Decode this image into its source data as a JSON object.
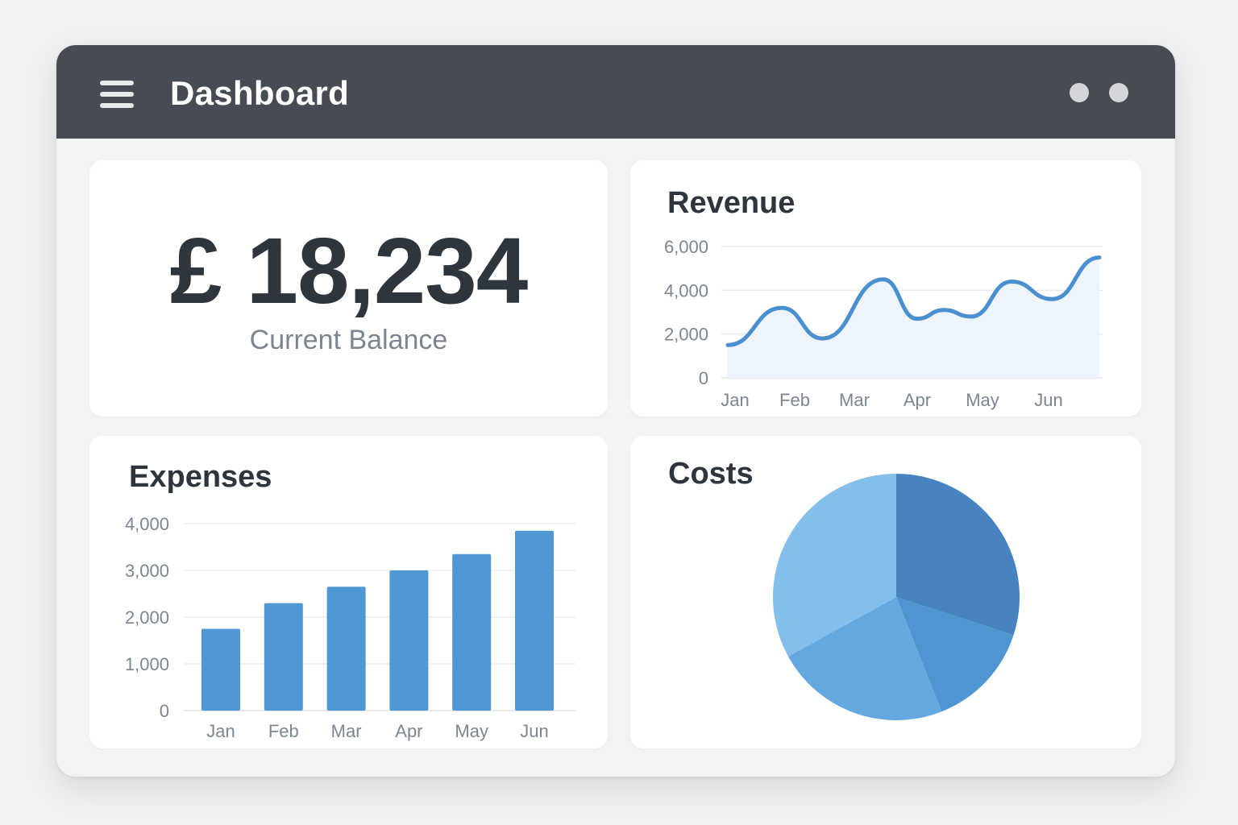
{
  "header": {
    "title": "Dashboard",
    "menu_icon": "hamburger-menu-icon",
    "window_controls": [
      "window-dot-icon",
      "window-dot-icon"
    ]
  },
  "balance": {
    "amount": "£ 18,234",
    "label": "Current Balance"
  },
  "revenue": {
    "title": "Revenue"
  },
  "expenses": {
    "title": "Expenses"
  },
  "costs": {
    "title": "Costs"
  },
  "colors": {
    "header_bg": "#474c54",
    "accent": "#4a8fd0",
    "bar": "#5098d4",
    "area_fill": "#eef4fb",
    "pie": [
      "#4683c0",
      "#4f95d2",
      "#64a8df",
      "#84bfec"
    ]
  },
  "chart_data": [
    {
      "id": "revenue",
      "type": "area",
      "title": "Revenue",
      "categories": [
        "Jan",
        "Feb",
        "Mar",
        "Apr",
        "May",
        "Jun"
      ],
      "x": [
        0,
        0.8,
        1.4,
        2.3,
        2.8,
        3.2,
        3.6,
        4.2,
        4.8,
        5.5
      ],
      "values": [
        1500,
        3200,
        1800,
        4500,
        2700,
        3100,
        2800,
        4400,
        3600,
        5500
      ],
      "yticks": [
        0,
        2000,
        4000,
        6000
      ],
      "ylim": [
        0,
        6000
      ],
      "grid": true
    },
    {
      "id": "expenses",
      "type": "bar",
      "title": "Expenses",
      "categories": [
        "Jan",
        "Feb",
        "Mar",
        "Apr",
        "May",
        "Jun"
      ],
      "values": [
        1750,
        2300,
        2650,
        3000,
        3350,
        3850
      ],
      "yticks": [
        0,
        1000,
        2000,
        3000,
        4000
      ],
      "ylim": [
        0,
        4000
      ],
      "grid": true
    },
    {
      "id": "costs",
      "type": "pie",
      "title": "Costs",
      "values": [
        30,
        14,
        23,
        33
      ]
    }
  ]
}
